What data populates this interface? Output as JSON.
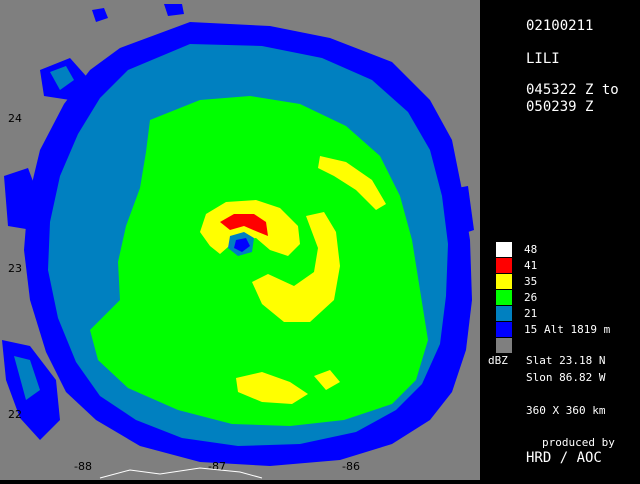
{
  "header": {
    "date_code": "02100211",
    "storm_name": "LILI",
    "time_range_start": "045322 Z to",
    "time_range_end": "050239 Z"
  },
  "legend": {
    "items": [
      {
        "label": "48",
        "color": "#ffffff"
      },
      {
        "label": "41",
        "color": "#ff0000"
      },
      {
        "label": "35",
        "color": "#ffff00"
      },
      {
        "label": "26",
        "color": "#00ff00"
      },
      {
        "label": "21",
        "color": "#0080c0"
      },
      {
        "label": "15",
        "color": "#0000ff"
      },
      {
        "label": "",
        "color": "#7f7f7f"
      }
    ],
    "unit": "dBZ",
    "altitude": "Alt   1819 m"
  },
  "position": {
    "slat": "Slat    23.18  N",
    "slon": "Slon    86.82  W"
  },
  "extent": "360  X  360  km",
  "credits": {
    "produced_by": "produced by",
    "org": "HRD  /  AOC"
  },
  "map_axes": {
    "lat_labels": [
      "24",
      "23",
      "22"
    ],
    "lon_labels": [
      "-88",
      "-87",
      "-86"
    ]
  }
}
